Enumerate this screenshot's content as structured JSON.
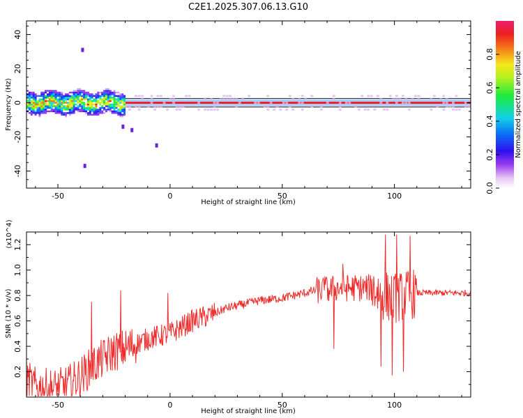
{
  "page": {
    "title": "C2E1.2025.307.06.13.G10"
  },
  "colors": {
    "snr_line": "#ee2b2b",
    "frame": "#000000",
    "background": "#ffffff"
  },
  "chart_data": [
    {
      "type": "heatmap",
      "title": "C2E1.2025.307.06.13.G10",
      "xlabel": "Height of straight line (km)",
      "ylabel": "Frequency (Hz)",
      "xlim": [
        -64,
        134
      ],
      "ylim": [
        -50,
        48
      ],
      "xticks": [
        -50,
        0,
        50,
        100
      ],
      "yticks": [
        -40,
        -20,
        0,
        20,
        40
      ],
      "colorbar": {
        "label": "Normalized spectral amplitude",
        "range": [
          0,
          1
        ],
        "ticks": [
          "0.0",
          "0.2",
          "0.4",
          "0.6",
          "0.8"
        ],
        "colormap": "rainbow"
      },
      "description_points": {
        "signal_frequency_hz": 0,
        "signal_band_halfwidth_hz": 2,
        "noisy_region_km": [
          -64,
          -20
        ],
        "outliers": [
          {
            "x": -21,
            "y": -14
          },
          {
            "x": -17,
            "y": -16
          },
          {
            "x": -39,
            "y": 31
          },
          {
            "x": -38,
            "y": -37
          },
          {
            "x": -6,
            "y": -25
          }
        ]
      }
    },
    {
      "type": "line",
      "xlabel": "Height of straight line (km)",
      "ylabel": "SNR (10 * v/v)",
      "y_multiplier": "(x10^4)",
      "xlim": [
        -64,
        134
      ],
      "ylim": [
        0,
        1.3
      ],
      "xticks": [
        -50,
        0,
        50,
        100
      ],
      "yticks": [
        0.2,
        0.4,
        0.6,
        0.8,
        1.0,
        1.2
      ],
      "series": [
        {
          "x": [
            -64,
            -60,
            -55,
            -50,
            -45,
            -40,
            -35,
            -30,
            -25,
            -20,
            -15,
            -10,
            -5,
            0,
            5,
            10,
            15,
            20,
            25,
            30,
            35,
            40,
            45,
            50,
            55,
            60,
            65,
            70,
            75,
            80,
            85,
            90,
            95,
            100,
            105,
            110,
            115,
            120,
            125,
            130,
            134
          ],
          "values": [
            0.14,
            0.08,
            0.07,
            0.07,
            0.1,
            0.16,
            0.24,
            0.3,
            0.36,
            0.38,
            0.42,
            0.46,
            0.48,
            0.5,
            0.55,
            0.6,
            0.63,
            0.66,
            0.7,
            0.72,
            0.74,
            0.76,
            0.77,
            0.78,
            0.8,
            0.82,
            0.84,
            0.84,
            0.86,
            0.86,
            0.86,
            0.86,
            0.8,
            0.78,
            0.8,
            0.82,
            0.82,
            0.82,
            0.82,
            0.82,
            0.82
          ]
        }
      ],
      "spikes": [
        {
          "x": -35,
          "y": 0.75
        },
        {
          "x": -22,
          "y": 0.84
        },
        {
          "x": -1,
          "y": 0.82
        },
        {
          "x": 69,
          "y": 0.95
        },
        {
          "x": 73,
          "y": 0.38
        },
        {
          "x": 77,
          "y": 1.05
        },
        {
          "x": 94,
          "y": 0.24
        },
        {
          "x": 96,
          "y": 1.28
        },
        {
          "x": 99,
          "y": 0.17
        },
        {
          "x": 101,
          "y": 1.28
        },
        {
          "x": 104,
          "y": 0.2
        },
        {
          "x": 107,
          "y": 1.27
        }
      ]
    }
  ]
}
